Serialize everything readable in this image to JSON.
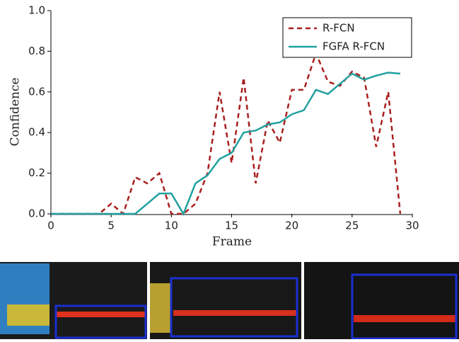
{
  "chart_data": {
    "type": "line",
    "x": [
      0,
      1,
      2,
      3,
      4,
      5,
      6,
      7,
      8,
      9,
      10,
      11,
      12,
      13,
      14,
      15,
      16,
      17,
      18,
      19,
      20,
      21,
      22,
      23,
      24,
      25,
      26,
      27,
      28,
      29
    ],
    "series": [
      {
        "name": "R-FCN",
        "color": "#a8201e",
        "dash": true,
        "values": [
          0,
          0,
          0,
          0,
          0,
          0.05,
          0,
          0.18,
          0.15,
          0.2,
          0,
          0,
          0.05,
          0.2,
          0.6,
          0.25,
          0.67,
          0.15,
          0.46,
          0.35,
          0.61,
          0.61,
          0.79,
          0.65,
          0.63,
          0.7,
          0.67,
          0.33,
          0.6,
          0
        ]
      },
      {
        "name": "FGFA R-FCN",
        "color": "#22a0a0",
        "dash": false,
        "values": [
          0,
          0,
          0,
          0,
          0,
          0,
          0,
          0,
          0.05,
          0.1,
          0.1,
          0,
          0.15,
          0.19,
          0.27,
          0.3,
          0.4,
          0.41,
          0.44,
          0.45,
          0.49,
          0.51,
          0.61,
          0.59,
          0.64,
          0.69,
          0.66,
          0.68,
          0.695,
          0.69
        ]
      }
    ],
    "xlabel": "Frame",
    "ylabel": "Confidence",
    "xlim": [
      0,
      30
    ],
    "ylim": [
      0,
      1
    ],
    "xticks": [
      0,
      5,
      10,
      15,
      20,
      25,
      30
    ],
    "yticks": [
      {
        "value": 0,
        "label": "0.0"
      },
      {
        "value": 0.2,
        "label": "0.2"
      },
      {
        "value": 0.4,
        "label": "0.4"
      },
      {
        "value": 0.6,
        "label": "0.6"
      },
      {
        "value": 0.8,
        "label": "0.8"
      },
      {
        "value": 1,
        "label": "1.0"
      }
    ],
    "legend": "upper right"
  }
}
